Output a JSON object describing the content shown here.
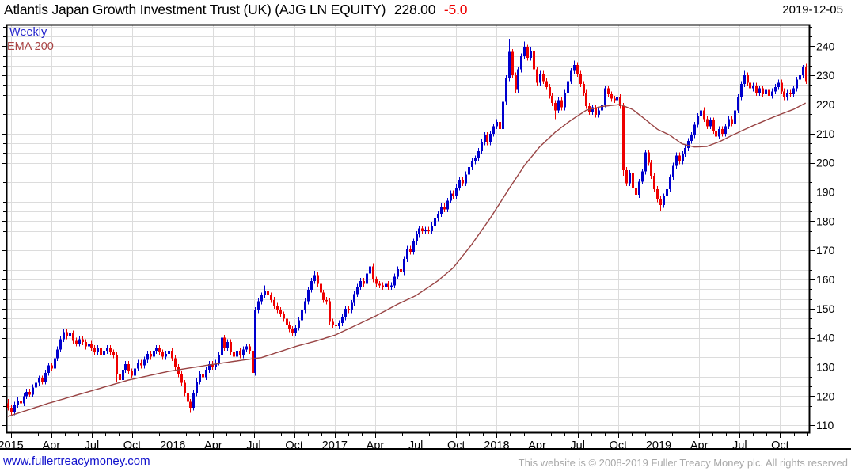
{
  "header": {
    "instrument": "Atlantis Japan Growth Investment Trust (UK) (AJG LN EQUITY)",
    "last_price": "228.00",
    "change": "-5.0",
    "date": "2019-12-05"
  },
  "legend": {
    "timeframe": "Weekly",
    "indicator": "EMA 200"
  },
  "footer": {
    "site_link": "www.fullertreacymoney.com",
    "copyright": "This website is © 2008-2019 Fuller Treacy Money plc. All rights reserved"
  },
  "colors": {
    "up_candle": "#0000cd",
    "down_candle": "#ee0000",
    "ema_line": "#994444",
    "ema_label": "#aa4444",
    "weekly_label": "#2222cc",
    "change_text": "#ee0000",
    "title_text": "#000000",
    "grid": "#dcdcdc",
    "axis": "#000000",
    "link": "#1111cc",
    "copyright_text": "#a8a8a8",
    "background": "#ffffff"
  },
  "chart_data": {
    "type": "candlestick",
    "interval": "weekly",
    "title": "Atlantis Japan Growth Investment Trust (UK) (AJG LN EQUITY)",
    "legend_entries": [
      "Weekly",
      "EMA 200"
    ],
    "grid": "on",
    "y_axis": {
      "side": "right",
      "min": 107.6,
      "max": 247.4,
      "tick_interval": 10,
      "minor_tick_interval": 3.3333,
      "ticks": [
        240,
        230,
        220,
        210,
        200,
        190,
        180,
        170,
        160,
        150,
        140,
        130,
        120,
        110
      ]
    },
    "x_axis": {
      "range": "Dec 2014 - Dec 2019",
      "labels": [
        {
          "m": 0,
          "label": "2015"
        },
        {
          "m": 3,
          "label": "Apr"
        },
        {
          "m": 6,
          "label": "Jul"
        },
        {
          "m": 9,
          "label": "Oct"
        },
        {
          "m": 12,
          "label": "2016"
        },
        {
          "m": 15,
          "label": "Apr"
        },
        {
          "m": 18,
          "label": "Jul"
        },
        {
          "m": 21,
          "label": "Oct"
        },
        {
          "m": 24,
          "label": "2017"
        },
        {
          "m": 27,
          "label": "Apr"
        },
        {
          "m": 30,
          "label": "Jul"
        },
        {
          "m": 33,
          "label": "Oct"
        },
        {
          "m": 36,
          "label": "2018"
        },
        {
          "m": 39,
          "label": "Apr"
        },
        {
          "m": 42,
          "label": "Jul"
        },
        {
          "m": 45,
          "label": "Oct"
        },
        {
          "m": 48,
          "label": "2019"
        },
        {
          "m": 51,
          "label": "Apr"
        },
        {
          "m": 54,
          "label": "Jul"
        },
        {
          "m": 57,
          "label": "Oct"
        }
      ],
      "months_total": 60
    },
    "first_open": 117.5,
    "closes": [
      116,
      114.5,
      117,
      118.5,
      117.5,
      120,
      121.5,
      120.5,
      123,
      124.5,
      126,
      125,
      128,
      130.5,
      129.5,
      133,
      136,
      139.5,
      142,
      140.5,
      141.5,
      139,
      138,
      139.5,
      138.5,
      137,
      138,
      136.5,
      135,
      136.5,
      134,
      135.5,
      136.5,
      135,
      134,
      127.5,
      125.5,
      129,
      131,
      128.5,
      127,
      129.5,
      131.5,
      130.5,
      132.5,
      134.5,
      133.5,
      135.5,
      136.5,
      135,
      133.5,
      134.5,
      135.5,
      133,
      130,
      127.5,
      124.5,
      121,
      118,
      116,
      121,
      125,
      127.5,
      126.5,
      129,
      131,
      130,
      131.5,
      134,
      140,
      136.5,
      138.5,
      135,
      133.5,
      135.5,
      134,
      136,
      137,
      135.5,
      128,
      149.5,
      152.5,
      154.5,
      156,
      154.5,
      153,
      151,
      149.5,
      148,
      146.5,
      144.5,
      143,
      141.5,
      143.5,
      146,
      149.5,
      152.5,
      156.5,
      159.5,
      161.5,
      158.5,
      155.5,
      153,
      152.5,
      145.5,
      144.5,
      144,
      145,
      147,
      150,
      149.5,
      152,
      155,
      157.5,
      159.5,
      158.5,
      162,
      164.5,
      160,
      158.5,
      158,
      157.5,
      158.5,
      157.5,
      158,
      161,
      163.5,
      162.5,
      167,
      170.5,
      169.5,
      173,
      175.5,
      177.5,
      176.5,
      177,
      176.5,
      178.5,
      181,
      182.5,
      185,
      184,
      187,
      189.5,
      188.5,
      191.5,
      194,
      193,
      196,
      198.5,
      200.5,
      201.5,
      204,
      207,
      209.5,
      207,
      210,
      212.5,
      214,
      211.5,
      221,
      229,
      238,
      230,
      225,
      232,
      236.5,
      239.5,
      236,
      238.5,
      232,
      227.5,
      230.5,
      228,
      226,
      223,
      220.5,
      218,
      221.5,
      219,
      224,
      228,
      231.5,
      233.5,
      230.5,
      227,
      224,
      219.5,
      217.5,
      219,
      216.5,
      218,
      220,
      225.5,
      223.5,
      222,
      221.5,
      222.5,
      219.5,
      197.5,
      193,
      196.5,
      191.5,
      189,
      193.5,
      197,
      203.5,
      200,
      195.5,
      191,
      187.5,
      185.5,
      188.5,
      191,
      195,
      199,
      202.5,
      200.5,
      203,
      205,
      207.5,
      209.5,
      213,
      216,
      218,
      215,
      212.5,
      214.5,
      211,
      209,
      211.5,
      210,
      212.5,
      215,
      213.5,
      218,
      222.5,
      227,
      230,
      227.5,
      225.5,
      226.5,
      224,
      225.5,
      223.5,
      225,
      223,
      224.5,
      226,
      227.5,
      224.5,
      222.5,
      224,
      223.5,
      225.5,
      228.5,
      230,
      233,
      228
    ],
    "high_overrides": {
      "0": 119,
      "69": 141.5,
      "83": 158,
      "99": 163,
      "162": 242.5,
      "167": 241.5,
      "183": 235,
      "238": 231.5,
      "257": 233.5
    },
    "low_overrides": {
      "1": 113.2,
      "35": 125,
      "59": 114.2,
      "79": 125.8,
      "177": 215,
      "199": 195.5,
      "211": 183.5,
      "229": 202
    },
    "ema": {
      "name": "EMA 200",
      "anchors": [
        [
          0,
          113
        ],
        [
          13,
          117.5
        ],
        [
          26,
          121.5
        ],
        [
          39,
          125.5
        ],
        [
          52,
          128.5
        ],
        [
          64,
          130.5
        ],
        [
          77,
          132.5
        ],
        [
          82,
          133.2
        ],
        [
          93,
          137
        ],
        [
          100,
          139
        ],
        [
          106,
          141
        ],
        [
          113,
          144.5
        ],
        [
          119,
          147.5
        ],
        [
          126,
          151.5
        ],
        [
          132,
          154.5
        ],
        [
          139,
          159.5
        ],
        [
          144,
          164
        ],
        [
          150,
          172
        ],
        [
          156,
          181
        ],
        [
          162,
          191
        ],
        [
          167,
          199
        ],
        [
          172,
          205.5
        ],
        [
          177,
          210.5
        ],
        [
          182,
          214.5
        ],
        [
          187,
          218
        ],
        [
          192,
          219.3
        ],
        [
          198,
          220
        ],
        [
          202,
          218.3
        ],
        [
          206,
          215
        ],
        [
          210,
          211.5
        ],
        [
          214,
          209.5
        ],
        [
          218,
          206.5
        ],
        [
          222,
          205.4
        ],
        [
          226,
          205.6
        ],
        [
          230,
          207.2
        ],
        [
          234,
          209.3
        ],
        [
          238,
          211.3
        ],
        [
          242,
          213.2
        ],
        [
          246,
          215
        ],
        [
          250,
          216.7
        ],
        [
          254,
          218.3
        ],
        [
          258,
          220.5
        ]
      ]
    }
  }
}
